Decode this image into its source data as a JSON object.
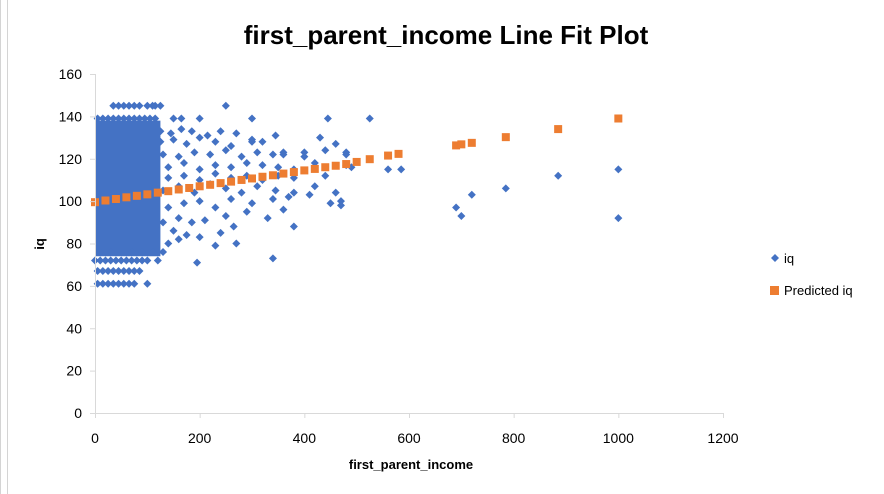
{
  "chart_data": {
    "type": "scatter",
    "title": "first_parent_income Line Fit  Plot",
    "xlabel": "first_parent_income",
    "ylabel": "iq",
    "xlim": [
      0,
      1200
    ],
    "ylim": [
      0,
      160
    ],
    "x_ticks": [
      0,
      200,
      400,
      600,
      800,
      1000,
      1200
    ],
    "y_ticks": [
      0,
      20,
      40,
      60,
      80,
      100,
      120,
      140,
      160
    ],
    "grid": false,
    "legend_position": "right",
    "series": [
      {
        "name": "iq",
        "marker": "diamond",
        "color": "#4472C4",
        "points": [
          [
            5,
            61
          ],
          [
            15,
            61
          ],
          [
            25,
            61
          ],
          [
            35,
            61
          ],
          [
            45,
            61
          ],
          [
            55,
            61
          ],
          [
            65,
            61
          ],
          [
            75,
            61
          ],
          [
            100,
            61
          ],
          [
            5,
            67
          ],
          [
            15,
            67
          ],
          [
            25,
            67
          ],
          [
            35,
            67
          ],
          [
            45,
            67
          ],
          [
            55,
            67
          ],
          [
            65,
            67
          ],
          [
            75,
            67
          ],
          [
            85,
            67
          ],
          [
            0,
            72
          ],
          [
            10,
            72
          ],
          [
            20,
            72
          ],
          [
            30,
            72
          ],
          [
            40,
            72
          ],
          [
            50,
            72
          ],
          [
            60,
            72
          ],
          [
            70,
            72
          ],
          [
            80,
            72
          ],
          [
            90,
            72
          ],
          [
            100,
            72
          ],
          [
            120,
            72
          ],
          [
            195,
            71
          ],
          [
            10,
            76
          ],
          [
            30,
            76
          ],
          [
            50,
            76
          ],
          [
            70,
            76
          ],
          [
            90,
            76
          ],
          [
            110,
            76
          ],
          [
            130,
            76
          ],
          [
            140,
            80
          ],
          [
            160,
            82
          ],
          [
            230,
            79
          ],
          [
            270,
            80
          ],
          [
            340,
            73
          ],
          [
            150,
            86
          ],
          [
            175,
            84
          ],
          [
            200,
            83
          ],
          [
            240,
            85
          ],
          [
            265,
            88
          ],
          [
            380,
            88
          ],
          [
            130,
            90
          ],
          [
            160,
            92
          ],
          [
            185,
            90
          ],
          [
            210,
            91
          ],
          [
            250,
            93
          ],
          [
            290,
            95
          ],
          [
            330,
            92
          ],
          [
            360,
            96
          ],
          [
            470,
            98
          ],
          [
            690,
            97
          ],
          [
            700,
            93
          ],
          [
            1000,
            92
          ],
          [
            140,
            97
          ],
          [
            170,
            99
          ],
          [
            200,
            100
          ],
          [
            230,
            97
          ],
          [
            260,
            101
          ],
          [
            300,
            99
          ],
          [
            340,
            101
          ],
          [
            370,
            102
          ],
          [
            410,
            103
          ],
          [
            450,
            99
          ],
          [
            470,
            100
          ],
          [
            130,
            105
          ],
          [
            160,
            107
          ],
          [
            190,
            104
          ],
          [
            220,
            108
          ],
          [
            250,
            106
          ],
          [
            280,
            104
          ],
          [
            310,
            107
          ],
          [
            345,
            105
          ],
          [
            380,
            104
          ],
          [
            420,
            107
          ],
          [
            460,
            104
          ],
          [
            720,
            103
          ],
          [
            785,
            106
          ],
          [
            140,
            111
          ],
          [
            170,
            112
          ],
          [
            200,
            110
          ],
          [
            230,
            113
          ],
          [
            260,
            111
          ],
          [
            290,
            112
          ],
          [
            320,
            110
          ],
          [
            350,
            112
          ],
          [
            380,
            111
          ],
          [
            440,
            112
          ],
          [
            490,
            116
          ],
          [
            885,
            112
          ],
          [
            140,
            116
          ],
          [
            170,
            118
          ],
          [
            200,
            115
          ],
          [
            230,
            117
          ],
          [
            260,
            116
          ],
          [
            290,
            118
          ],
          [
            320,
            117
          ],
          [
            350,
            116
          ],
          [
            380,
            115
          ],
          [
            420,
            118
          ],
          [
            480,
            117
          ],
          [
            560,
            115
          ],
          [
            585,
            115
          ],
          [
            1000,
            115
          ],
          [
            130,
            122
          ],
          [
            160,
            121
          ],
          [
            190,
            123
          ],
          [
            220,
            122
          ],
          [
            250,
            124
          ],
          [
            280,
            121
          ],
          [
            310,
            123
          ],
          [
            340,
            122
          ],
          [
            360,
            123
          ],
          [
            400,
            121
          ],
          [
            440,
            124
          ],
          [
            480,
            123
          ],
          [
            125,
            128
          ],
          [
            150,
            129
          ],
          [
            175,
            127
          ],
          [
            200,
            130
          ],
          [
            230,
            128
          ],
          [
            260,
            126
          ],
          [
            300,
            129
          ],
          [
            320,
            128
          ],
          [
            125,
            133
          ],
          [
            145,
            132
          ],
          [
            165,
            134
          ],
          [
            185,
            133
          ],
          [
            215,
            131
          ],
          [
            240,
            133
          ],
          [
            270,
            132
          ],
          [
            300,
            128
          ],
          [
            345,
            131
          ],
          [
            360,
            122
          ],
          [
            400,
            123
          ],
          [
            430,
            130
          ],
          [
            460,
            127
          ],
          [
            480,
            122
          ],
          [
            5,
            139
          ],
          [
            15,
            139
          ],
          [
            25,
            139
          ],
          [
            35,
            139
          ],
          [
            45,
            139
          ],
          [
            55,
            139
          ],
          [
            65,
            139
          ],
          [
            75,
            139
          ],
          [
            85,
            139
          ],
          [
            95,
            139
          ],
          [
            105,
            139
          ],
          [
            115,
            139
          ],
          [
            150,
            139
          ],
          [
            165,
            139
          ],
          [
            200,
            139
          ],
          [
            300,
            139
          ],
          [
            445,
            139
          ],
          [
            525,
            139
          ],
          [
            35,
            145
          ],
          [
            45,
            145
          ],
          [
            55,
            145
          ],
          [
            65,
            145
          ],
          [
            75,
            145
          ],
          [
            85,
            145
          ],
          [
            100,
            145
          ],
          [
            110,
            145
          ],
          [
            115,
            145
          ],
          [
            125,
            145
          ],
          [
            250,
            145
          ]
        ]
      },
      {
        "name": "Predicted iq",
        "marker": "square",
        "color": "#ED7D31",
        "points": [
          [
            0,
            99.5
          ],
          [
            20,
            100.3
          ],
          [
            40,
            101
          ],
          [
            60,
            101.8
          ],
          [
            80,
            102.5
          ],
          [
            100,
            103.2
          ],
          [
            120,
            104
          ],
          [
            140,
            104.7
          ],
          [
            160,
            105.5
          ],
          [
            180,
            106.2
          ],
          [
            200,
            107
          ],
          [
            220,
            107.7
          ],
          [
            240,
            108.5
          ],
          [
            260,
            109.2
          ],
          [
            280,
            110
          ],
          [
            300,
            110.7
          ],
          [
            320,
            111.5
          ],
          [
            340,
            112.2
          ],
          [
            360,
            113
          ],
          [
            380,
            113.7
          ],
          [
            400,
            114.5
          ],
          [
            420,
            115.2
          ],
          [
            440,
            116
          ],
          [
            460,
            116.7
          ],
          [
            480,
            117.5
          ],
          [
            500,
            118.5
          ],
          [
            525,
            119.8
          ],
          [
            560,
            121.5
          ],
          [
            580,
            122.3
          ],
          [
            690,
            126.3
          ],
          [
            700,
            126.8
          ],
          [
            720,
            127.5
          ],
          [
            785,
            130.2
          ],
          [
            885,
            134
          ],
          [
            1000,
            139
          ]
        ]
      }
    ]
  }
}
